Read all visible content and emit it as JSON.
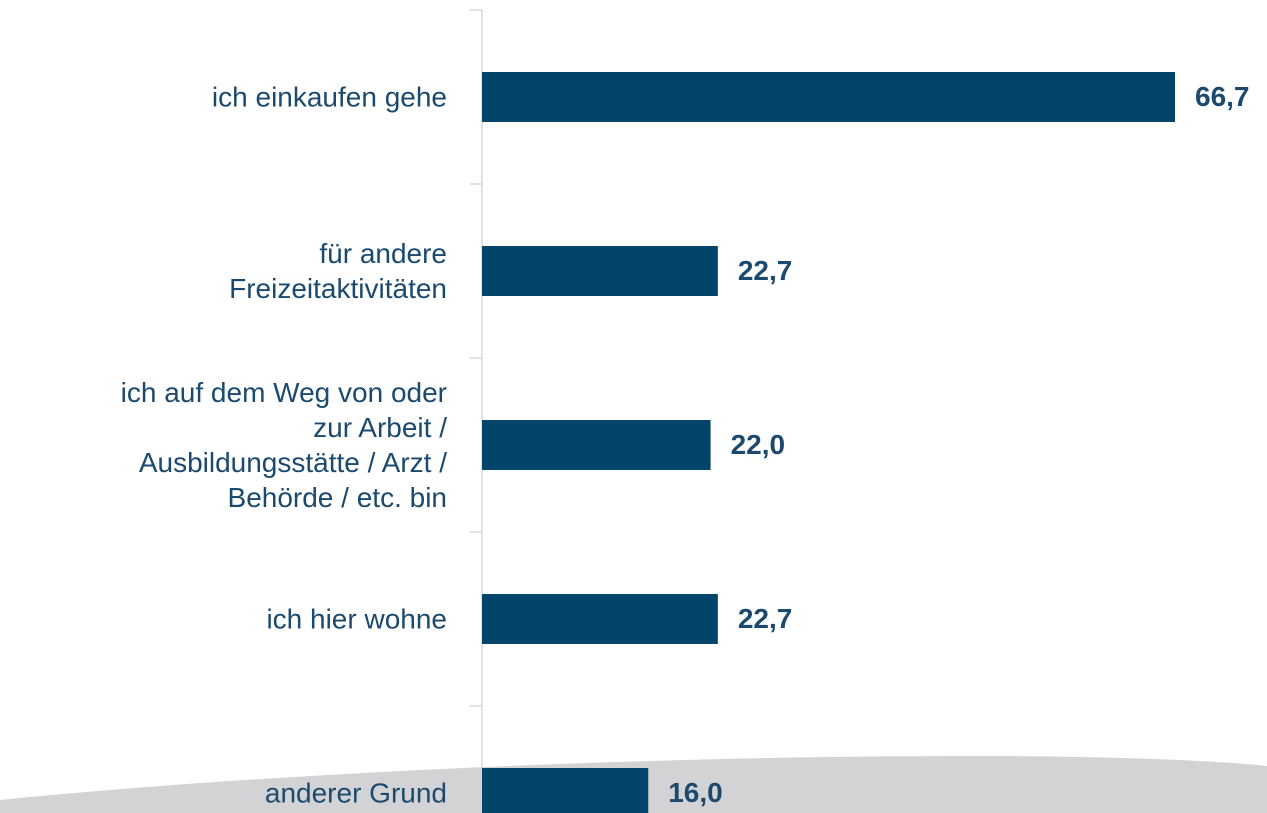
{
  "chart_data": {
    "type": "bar",
    "orientation": "horizontal",
    "categories": [
      "ich einkaufen gehe",
      "für andere\nFreizeitaktivitäten",
      "ich auf dem Weg von oder\nzur Arbeit /\nAusbildungsstätte / Arzt /\nBehörde / etc. bin",
      "ich hier wohne",
      "anderer Grund"
    ],
    "values": [
      66.7,
      22.7,
      22.0,
      22.7,
      16.0
    ],
    "value_labels": [
      "66,7",
      "22,7",
      "22,0",
      "22,7",
      "16,0"
    ],
    "color": "#03446b"
  }
}
